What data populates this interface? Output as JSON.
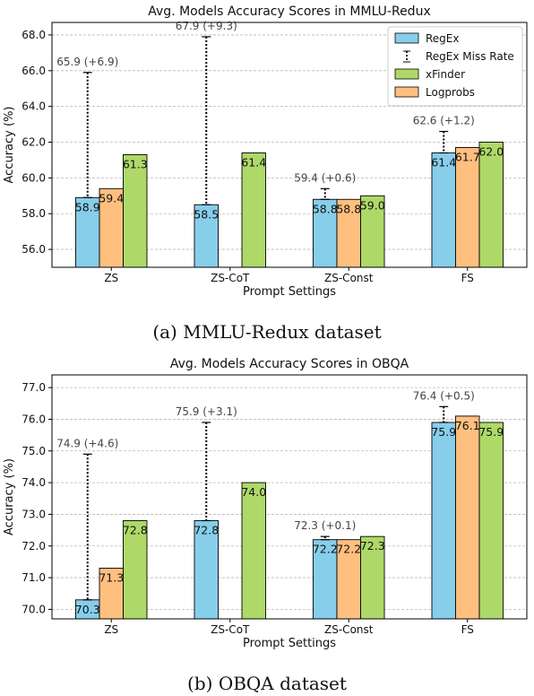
{
  "colors": {
    "RegEx": "#87CEEB",
    "Logprobs": "#FFBF7F",
    "xFinder": "#AED968",
    "edge": "#000000",
    "grid": "#b9b9b9"
  },
  "legend_labels": {
    "regex": "RegEx",
    "miss": "RegEx Miss Rate",
    "xfinder": "xFinder",
    "logprobs": "Logprobs"
  },
  "captions": {
    "a": "(a) MMLU-Redux dataset",
    "b": "(b) OBQA dataset"
  },
  "chart_data": [
    {
      "type": "bar",
      "title": "Avg. Models Accuracy Scores in MMLU-Redux",
      "xlabel": "Prompt Settings",
      "ylabel": "Accuracy (%)",
      "categories": [
        "ZS",
        "ZS-CoT",
        "ZS-Const",
        "FS"
      ],
      "ylim": [
        55.0,
        68.7
      ],
      "yticks": [
        "56.0",
        "58.0",
        "60.0",
        "62.0",
        "64.0",
        "66.0",
        "68.0"
      ],
      "grid": true,
      "legend_position": "top-right",
      "series": [
        {
          "name": "RegEx",
          "values": [
            58.9,
            58.5,
            58.8,
            61.4
          ],
          "labels": [
            "58.9",
            "58.5",
            "58.8",
            "61.4"
          ]
        },
        {
          "name": "Logprobs",
          "values": [
            59.4,
            null,
            58.8,
            61.7
          ],
          "labels": [
            "59.4",
            "",
            "58.8",
            "61.7"
          ]
        },
        {
          "name": "xFinder",
          "values": [
            61.3,
            61.4,
            59.0,
            62.0
          ],
          "labels": [
            "61.3",
            "61.4",
            "59.0",
            "62.0"
          ]
        }
      ],
      "miss_rate": {
        "name": "RegEx Miss Rate",
        "values": [
          65.9,
          67.9,
          59.4,
          62.6
        ],
        "labels": [
          "65.9 (+6.9)",
          "67.9 (+9.3)",
          "59.4 (+0.6)",
          "62.6 (+1.2)"
        ]
      }
    },
    {
      "type": "bar",
      "title": "Avg. Models Accuracy Scores in OBQA",
      "xlabel": "Prompt Settings",
      "ylabel": "Accuracy (%)",
      "categories": [
        "ZS",
        "ZS-CoT",
        "ZS-Const",
        "FS"
      ],
      "ylim": [
        69.7,
        77.4
      ],
      "yticks": [
        "70.0",
        "71.0",
        "72.0",
        "73.0",
        "74.0",
        "75.0",
        "76.0",
        "77.0"
      ],
      "grid": true,
      "series": [
        {
          "name": "RegEx",
          "values": [
            70.3,
            72.8,
            72.2,
            75.9
          ],
          "labels": [
            "70.3",
            "72.8",
            "72.2",
            "75.9"
          ]
        },
        {
          "name": "Logprobs",
          "values": [
            71.3,
            null,
            72.2,
            76.1
          ],
          "labels": [
            "71.3",
            "",
            "72.2",
            "76.1"
          ]
        },
        {
          "name": "xFinder",
          "values": [
            72.8,
            74.0,
            72.3,
            75.9
          ],
          "labels": [
            "72.8",
            "74.0",
            "72.3",
            "75.9"
          ]
        }
      ],
      "miss_rate": {
        "name": "RegEx Miss Rate",
        "values": [
          74.9,
          75.9,
          72.3,
          76.4
        ],
        "labels": [
          "74.9 (+4.6)",
          "75.9 (+3.1)",
          "72.3 (+0.1)",
          "76.4 (+0.5)"
        ]
      }
    }
  ]
}
